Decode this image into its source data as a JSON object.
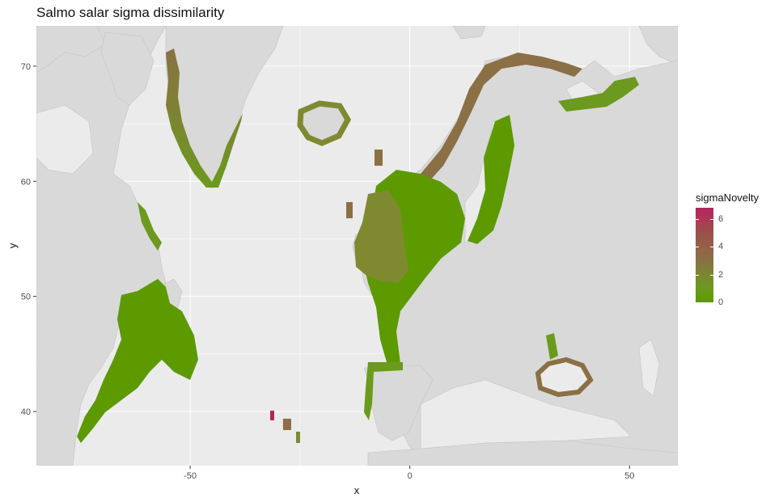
{
  "title": "Salmo salar sigma dissimilarity",
  "axes": {
    "xlabel": "x",
    "ylabel": "y",
    "xlim": [
      -85,
      61
    ],
    "ylim": [
      35.3,
      73.5
    ],
    "xticks": [
      -50,
      0,
      50
    ],
    "yticks": [
      40,
      50,
      60,
      70
    ]
  },
  "legend": {
    "title": "sigmaNovelty",
    "ticks": [
      6,
      4,
      2,
      0
    ],
    "range": [
      0,
      6.8
    ],
    "colors": [
      "#5c9a00",
      "#8b7045",
      "#b5255e"
    ]
  },
  "colors": {
    "panel": "#ebebeb",
    "land": "#d9d9d9",
    "gridline": "#ffffff",
    "low": "#5c9a00",
    "mid": "#8b7045",
    "high": "#b5255e"
  }
}
